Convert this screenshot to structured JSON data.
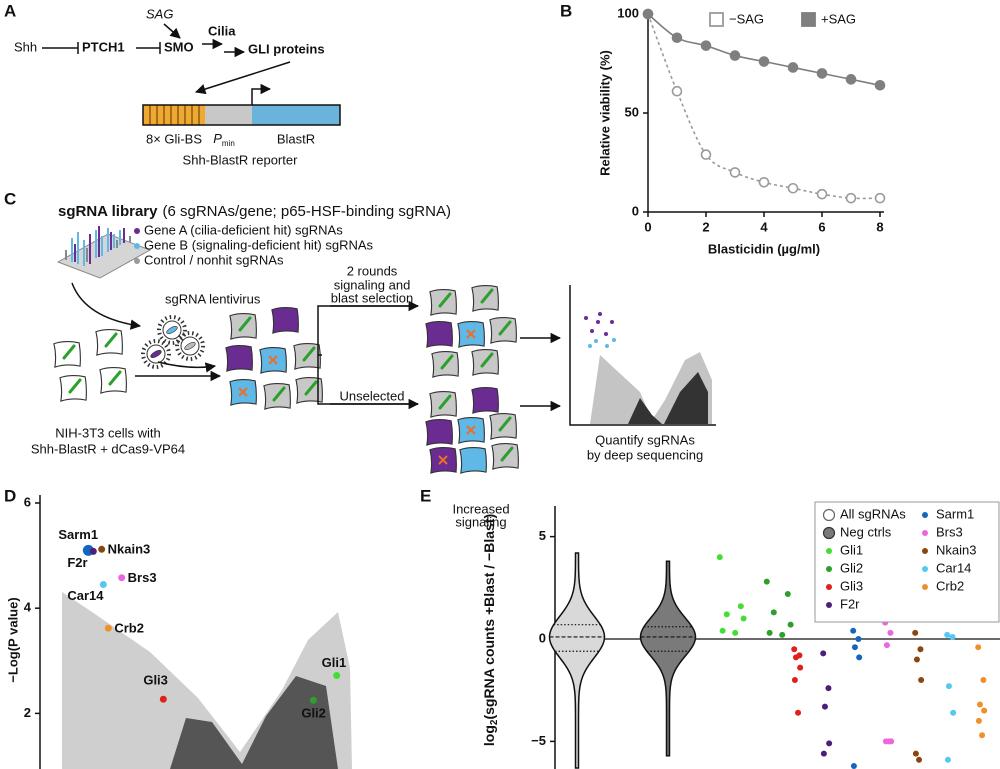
{
  "panels": [
    "A",
    "B",
    "C",
    "D",
    "E"
  ],
  "diagram_a": {
    "ligand": "Shh",
    "receptor": "PTCH1",
    "transducer": "SMO",
    "agonist": "SAG",
    "organelle": "Cilia",
    "effector": "GLI proteins",
    "reporter_parts": [
      "8× Gli-BS",
      "P",
      "BlastR"
    ],
    "promoter_subscript": "min",
    "caption": "Shh-BlastR reporter"
  },
  "diagram_c": {
    "library_title": "sgRNA library",
    "library_detail": "(6 sgRNAs/gene; p65-HSF-binding sgRNA)",
    "legend": [
      {
        "label": "Gene A (cilia-deficient hit) sgRNAs",
        "color": "#6a2c91"
      },
      {
        "label": "Gene B (signaling-deficient hit) sgRNAs",
        "color": "#5fb8e6"
      },
      {
        "label": "Control / nonhit sgRNAs",
        "color": "#9a9a9a"
      }
    ],
    "virus": "sgRNA lentivirus",
    "selected": [
      "2 rounds",
      "signaling and",
      "blast selection"
    ],
    "unselected": "Unselected",
    "cells": [
      "NIH-3T3 cells with",
      "Shh-BlastR + dCas9-VP64"
    ],
    "quantify": [
      "Quantify sgRNAs",
      "by deep sequencing"
    ]
  },
  "chart_data": [
    {
      "type": "line",
      "xlabel": "Blasticidin (µg/ml)",
      "ylabel": "Relative viability (%)",
      "x": [
        0,
        1,
        2,
        3,
        4,
        5,
        6,
        7,
        8
      ],
      "xlim": [
        0,
        8
      ],
      "ylim": [
        0,
        100
      ],
      "xticks": [
        0,
        2,
        4,
        6,
        8
      ],
      "yticks": [
        0,
        50,
        100
      ],
      "legend": "top-right",
      "series": [
        {
          "name": "−SAG",
          "color": "#9a9a9a",
          "marker": "open",
          "line_style": "dashed",
          "values": [
            100,
            61,
            29,
            20,
            15,
            12,
            9,
            7,
            7
          ]
        },
        {
          "name": "+SAG",
          "color": "#7f7f7f",
          "marker": "filled",
          "line_style": "solid",
          "values": [
            100,
            88,
            84,
            79,
            76,
            73,
            70,
            67,
            64
          ]
        }
      ]
    },
    {
      "type": "scatter",
      "ylabel": "−Log(P value)",
      "xlim": [
        -6,
        6
      ],
      "ylim": [
        1,
        6
      ],
      "yticks": [
        2,
        4,
        6
      ],
      "series": [
        {
          "name": "Sarm1",
          "color": "#1565c0",
          "x": [
            -4.55
          ],
          "values": [
            5.1
          ]
        },
        {
          "name": "F2r",
          "color": "#4b1f7a",
          "x": [
            -4.4
          ],
          "values": [
            5.08
          ]
        },
        {
          "name": "Nkain3",
          "color": "#8b4513",
          "x": [
            -4.15
          ],
          "values": [
            5.12
          ]
        },
        {
          "name": "Brs3",
          "color": "#ee66dd",
          "x": [
            -3.55
          ],
          "values": [
            4.58
          ]
        },
        {
          "name": "Car14",
          "color": "#55c8f0",
          "x": [
            -4.1
          ],
          "values": [
            4.45
          ]
        },
        {
          "name": "Crb2",
          "color": "#f0902a",
          "x": [
            -3.95
          ],
          "values": [
            3.62
          ]
        },
        {
          "name": "Gli3",
          "color": "#e0201b",
          "x": [
            -2.3
          ],
          "values": [
            2.27
          ]
        },
        {
          "name": "Gli2",
          "color": "#2e9e2e",
          "x": [
            2.2
          ],
          "values": [
            2.25
          ]
        },
        {
          "name": "Gli1",
          "color": "#44dd33",
          "x": [
            2.9
          ],
          "values": [
            2.72
          ]
        }
      ]
    },
    {
      "type": "violin",
      "ylabel": [
        "log",
        "2",
        "(sgRNA counts +Blast / −Blast)"
      ],
      "annotation": [
        "Increased",
        "signaling"
      ],
      "ylim": [
        -6.3,
        6.3
      ],
      "yticks": [
        5,
        0,
        {
          "value": -5,
          "label": "−5"
        }
      ],
      "legend": "top-right",
      "violins": [
        {
          "name": "All sgRNAs",
          "color": "#d9d9d9",
          "min": -6.3,
          "q1": -0.6,
          "median": 0.1,
          "q3": 0.7,
          "max": 4.2
        },
        {
          "name": "Neg ctrls",
          "color": "#7a7a7a",
          "min": -5.7,
          "q1": -0.6,
          "median": 0.1,
          "q3": 0.6,
          "max": 3.8
        }
      ],
      "series": [
        {
          "name": "Gli1",
          "color": "#44dd33",
          "values": [
            4.0,
            1.6,
            1.2,
            1.0,
            0.4,
            0.3
          ]
        },
        {
          "name": "Gli2",
          "color": "#2e9e2e",
          "values": [
            2.8,
            2.2,
            1.3,
            0.7,
            0.3,
            0.2
          ]
        },
        {
          "name": "Gli3",
          "color": "#e0201b",
          "values": [
            -0.5,
            -0.8,
            -0.9,
            -1.4,
            -2.0,
            -3.6
          ]
        },
        {
          "name": "F2r",
          "color": "#4b1f7a",
          "values": [
            -0.7,
            -2.4,
            -3.3,
            -5.1,
            -5.6
          ]
        },
        {
          "name": "Sarm1",
          "color": "#1565c0",
          "values": [
            0.4,
            0.0,
            -0.4,
            -0.9,
            -6.2
          ]
        },
        {
          "name": "Brs3",
          "color": "#ee66dd",
          "values": [
            0.8,
            0.3,
            -0.3,
            -5.0,
            -5.0,
            -5.0
          ]
        },
        {
          "name": "Nkain3",
          "color": "#8b4513",
          "values": [
            0.3,
            -0.5,
            -1.0,
            -2.0,
            -5.6,
            -5.9
          ]
        },
        {
          "name": "Car14",
          "color": "#55c8f0",
          "values": [
            0.2,
            0.1,
            -2.3,
            -3.6,
            -5.9
          ]
        },
        {
          "name": "Crb2",
          "color": "#f0902a",
          "values": [
            -0.4,
            -2.0,
            -3.2,
            -3.5,
            -4.0,
            -4.7
          ]
        }
      ]
    }
  ]
}
